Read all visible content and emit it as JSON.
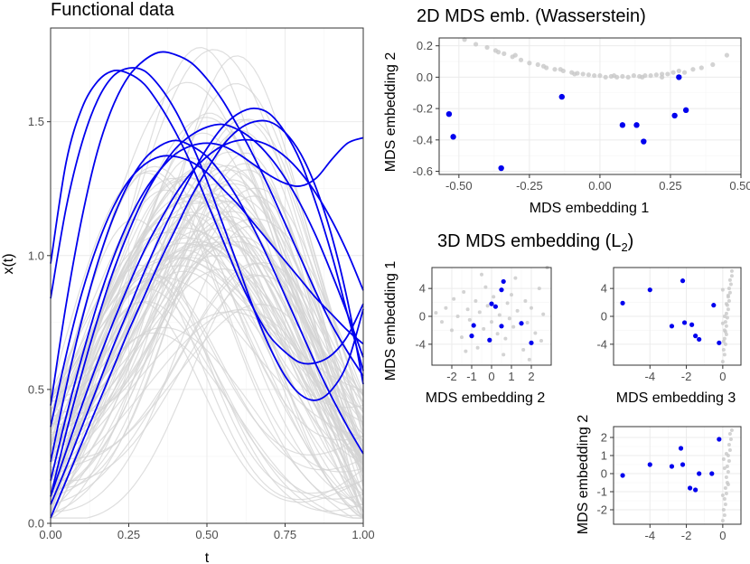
{
  "colors": {
    "highlight": "#0000ee",
    "background_curves": "#d3d3d3",
    "background_points": "#c8c8c8"
  },
  "chart_data": [
    {
      "type": "line",
      "title": "Functional data",
      "xlabel": "t",
      "ylabel": "x(t)",
      "xlim": [
        0,
        1
      ],
      "ylim": [
        0,
        1.85
      ],
      "xticks": [
        "0.00",
        "0.25",
        "0.50",
        "0.75",
        "1.00"
      ],
      "yticks": [
        "0.0",
        "0.5",
        "1.0",
        "1.5"
      ],
      "grid": true,
      "x_samples": [
        0,
        0.05,
        0.1,
        0.15,
        0.2,
        0.25,
        0.3,
        0.35,
        0.4,
        0.45,
        0.5,
        0.55,
        0.6,
        0.65,
        0.7,
        0.75,
        0.8,
        0.85,
        0.9,
        0.95,
        1
      ],
      "series": [
        {
          "group": "highlight",
          "values": [
            0.97,
            1.35,
            1.55,
            1.65,
            1.69,
            1.68,
            1.64,
            1.56,
            1.46,
            1.34,
            1.2,
            1.06,
            0.92,
            0.8,
            0.7,
            0.64,
            0.6,
            0.6,
            0.63,
            0.7,
            0.82
          ]
        },
        {
          "group": "highlight",
          "values": [
            0.84,
            1.18,
            1.42,
            1.58,
            1.67,
            1.7,
            1.69,
            1.63,
            1.54,
            1.42,
            1.28,
            1.12,
            0.96,
            0.8,
            0.66,
            0.55,
            0.48,
            0.46,
            0.5,
            0.6,
            0.8
          ]
        },
        {
          "group": "highlight",
          "values": [
            0.44,
            0.82,
            1.14,
            1.39,
            1.56,
            1.67,
            1.73,
            1.76,
            1.75,
            1.72,
            1.66,
            1.58,
            1.48,
            1.37,
            1.25,
            1.12,
            0.99,
            0.86,
            0.74,
            0.64,
            0.55
          ]
        },
        {
          "group": "highlight",
          "values": [
            0.23,
            0.51,
            0.76,
            0.97,
            1.14,
            1.27,
            1.36,
            1.41,
            1.43,
            1.41,
            1.37,
            1.3,
            1.21,
            1.1,
            0.98,
            0.85,
            0.72,
            0.59,
            0.47,
            0.36,
            0.26
          ]
        },
        {
          "group": "highlight",
          "values": [
            0.36,
            0.63,
            0.86,
            1.04,
            1.18,
            1.28,
            1.34,
            1.37,
            1.37,
            1.35,
            1.31,
            1.25,
            1.19,
            1.12,
            1.05,
            0.98,
            0.91,
            0.84,
            0.78,
            0.72,
            0.67
          ]
        },
        {
          "group": "highlight",
          "values": [
            0.1,
            0.34,
            0.56,
            0.76,
            0.94,
            1.09,
            1.22,
            1.32,
            1.4,
            1.45,
            1.48,
            1.49,
            1.47,
            1.43,
            1.37,
            1.29,
            1.19,
            1.07,
            0.93,
            0.78,
            0.62
          ]
        },
        {
          "group": "highlight",
          "values": [
            0.16,
            0.4,
            0.62,
            0.82,
            0.99,
            1.13,
            1.24,
            1.32,
            1.38,
            1.41,
            1.42,
            1.41,
            1.38,
            1.34,
            1.3,
            1.27,
            1.26,
            1.29,
            1.36,
            1.42,
            1.44
          ]
        },
        {
          "group": "highlight",
          "values": [
            0.1,
            0.27,
            0.44,
            0.6,
            0.75,
            0.89,
            1.02,
            1.13,
            1.23,
            1.31,
            1.37,
            1.41,
            1.43,
            1.43,
            1.41,
            1.37,
            1.31,
            1.23,
            1.13,
            1.01,
            0.87
          ]
        },
        {
          "group": "highlight",
          "values": [
            0.07,
            0.21,
            0.36,
            0.51,
            0.66,
            0.8,
            0.94,
            1.07,
            1.19,
            1.3,
            1.4,
            1.48,
            1.53,
            1.55,
            1.53,
            1.46,
            1.35,
            1.19,
            1.0,
            0.78,
            0.57
          ]
        },
        {
          "group": "highlight",
          "values": [
            0.02,
            0.16,
            0.3,
            0.44,
            0.58,
            0.72,
            0.85,
            0.98,
            1.1,
            1.22,
            1.32,
            1.41,
            1.47,
            1.5,
            1.5,
            1.46,
            1.38,
            1.25,
            1.07,
            0.83,
            0.52
          ]
        }
      ]
    },
    {
      "type": "scatter",
      "title": "2D MDS emb. (Wasserstein)",
      "xlabel": "MDS embedding 1",
      "ylabel": "MDS embedding 2",
      "xlim": [
        -0.57,
        0.5
      ],
      "ylim": [
        -0.62,
        0.25
      ],
      "xticks": [
        "-0.50",
        "-0.25",
        "0.00",
        "0.25",
        "0.50"
      ],
      "yticks": [
        "0.2",
        "0.0",
        "-0.2",
        "-0.4",
        "-0.6"
      ],
      "grid": true,
      "highlight_points": [
        [
          -0.535,
          -0.235
        ],
        [
          -0.52,
          -0.38
        ],
        [
          -0.35,
          -0.58
        ],
        [
          -0.135,
          -0.125
        ],
        [
          0.08,
          -0.305
        ],
        [
          0.13,
          -0.305
        ],
        [
          0.155,
          -0.41
        ],
        [
          0.265,
          -0.245
        ],
        [
          0.28,
          0.0
        ],
        [
          0.305,
          -0.21
        ]
      ],
      "background_points": [
        [
          -0.48,
          0.24
        ],
        [
          -0.44,
          0.21
        ],
        [
          -0.4,
          0.19
        ],
        [
          -0.37,
          0.17
        ],
        [
          -0.34,
          0.15
        ],
        [
          -0.31,
          0.13
        ],
        [
          -0.28,
          0.11
        ],
        [
          -0.25,
          0.09
        ],
        [
          -0.22,
          0.08
        ],
        [
          -0.19,
          0.06
        ],
        [
          -0.16,
          0.05
        ],
        [
          -0.13,
          0.04
        ],
        [
          -0.1,
          0.03
        ],
        [
          -0.08,
          0.025
        ],
        [
          -0.06,
          0.02
        ],
        [
          -0.04,
          0.015
        ],
        [
          -0.02,
          0.01
        ],
        [
          0.0,
          0.01
        ],
        [
          0.02,
          0.0
        ],
        [
          0.04,
          0.005
        ],
        [
          0.06,
          0.0
        ],
        [
          0.08,
          0.005
        ],
        [
          0.1,
          0.0
        ],
        [
          0.12,
          0.01
        ],
        [
          0.14,
          0.005
        ],
        [
          0.16,
          0.01
        ],
        [
          0.18,
          0.01
        ],
        [
          0.2,
          0.015
        ],
        [
          0.22,
          0.02
        ],
        [
          0.24,
          0.02
        ],
        [
          0.26,
          0.03
        ],
        [
          0.3,
          0.03
        ],
        [
          0.33,
          0.05
        ],
        [
          0.36,
          0.06
        ],
        [
          0.4,
          0.08
        ],
        [
          0.45,
          0.14
        ],
        [
          -0.3,
          0.14
        ],
        [
          -0.2,
          0.07
        ],
        [
          -0.09,
          0.02
        ],
        [
          0.05,
          0.01
        ],
        [
          0.15,
          0.0
        ],
        [
          0.22,
          0.0
        ],
        [
          0.28,
          0.04
        ],
        [
          -0.36,
          0.16
        ],
        [
          -0.14,
          0.05
        ]
      ]
    },
    {
      "type": "scatter",
      "title": "3D MDS embedding (L",
      "title_subscript": "2",
      "title_suffix": ")",
      "panels": [
        {
          "xlabel": "MDS embedding 2",
          "ylabel": "MDS embedding 1",
          "xlim": [
            -3,
            3
          ],
          "ylim": [
            -7,
            7
          ],
          "xticks": [
            "-2",
            "-1",
            "0",
            "1",
            "2"
          ],
          "yticks": [
            "4",
            "0",
            "-4"
          ],
          "highlight_points": [
            [
              -1.0,
              -2.8
            ],
            [
              -0.9,
              -1.3
            ],
            [
              0.0,
              1.8
            ],
            [
              0.2,
              1.4
            ],
            [
              -0.1,
              -3.4
            ],
            [
              0.5,
              3.8
            ],
            [
              0.6,
              5.0
            ],
            [
              1.5,
              -1.0
            ],
            [
              2.0,
              -3.8
            ],
            [
              0.5,
              -1.4
            ]
          ],
          "background_points": [
            [
              -2.8,
              0.5
            ],
            [
              -2.5,
              -0.8
            ],
            [
              -2.3,
              1.2
            ],
            [
              -2.0,
              -2.0
            ],
            [
              -1.9,
              2.5
            ],
            [
              -1.7,
              0.0
            ],
            [
              -1.5,
              -3.0
            ],
            [
              -1.4,
              3.5
            ],
            [
              -1.2,
              1.0
            ],
            [
              -1.1,
              -0.5
            ],
            [
              -0.8,
              2.2
            ],
            [
              -0.7,
              -4.5
            ],
            [
              -0.6,
              0.6
            ],
            [
              -0.4,
              -1.8
            ],
            [
              -0.3,
              4.2
            ],
            [
              -0.2,
              1.5
            ],
            [
              0.0,
              -0.8
            ],
            [
              0.1,
              2.8
            ],
            [
              0.3,
              -2.5
            ],
            [
              0.4,
              0.2
            ],
            [
              0.7,
              -3.2
            ],
            [
              0.8,
              1.9
            ],
            [
              0.9,
              -0.3
            ],
            [
              1.0,
              3.1
            ],
            [
              1.1,
              -1.5
            ],
            [
              1.2,
              5.5
            ],
            [
              1.3,
              0.8
            ],
            [
              1.6,
              -4.8
            ],
            [
              1.7,
              2.2
            ],
            [
              1.8,
              -0.9
            ],
            [
              2.0,
              1.2
            ],
            [
              2.2,
              -2.4
            ],
            [
              2.4,
              4.0
            ],
            [
              2.6,
              0.3
            ],
            [
              2.8,
              7.0
            ],
            [
              -1.3,
              -5.0
            ],
            [
              0.6,
              -5.5
            ],
            [
              1.9,
              -6.2
            ],
            [
              -0.5,
              6.0
            ],
            [
              2.5,
              -3.5
            ]
          ]
        },
        {
          "xlabel": "MDS embedding 3",
          "ylabel": "",
          "xlim": [
            -6,
            1
          ],
          "ylim": [
            -7,
            7
          ],
          "xticks": [
            "-4",
            "-2",
            "0"
          ],
          "yticks": [
            "4",
            "0",
            "-4"
          ],
          "highlight_points": [
            [
              -5.5,
              1.9
            ],
            [
              -4.0,
              3.8
            ],
            [
              -2.8,
              -1.4
            ],
            [
              -2.2,
              5.1
            ],
            [
              -2.1,
              -0.9
            ],
            [
              -1.7,
              -1.2
            ],
            [
              -1.5,
              -2.8
            ],
            [
              -1.3,
              -3.3
            ],
            [
              -0.5,
              1.6
            ],
            [
              -0.2,
              -3.8
            ]
          ],
          "background_points": [
            [
              0.0,
              -6.5
            ],
            [
              0.1,
              -5.5
            ],
            [
              0.05,
              -4.8
            ],
            [
              0.15,
              -4.0
            ],
            [
              0.1,
              -3.2
            ],
            [
              0.2,
              -2.6
            ],
            [
              0.1,
              -2.0
            ],
            [
              0.2,
              -1.4
            ],
            [
              0.15,
              -0.8
            ],
            [
              0.25,
              -0.2
            ],
            [
              0.2,
              0.4
            ],
            [
              0.3,
              1.0
            ],
            [
              0.25,
              1.6
            ],
            [
              0.35,
              2.2
            ],
            [
              0.3,
              2.8
            ],
            [
              0.4,
              3.4
            ],
            [
              0.35,
              4.0
            ],
            [
              0.45,
              4.6
            ],
            [
              0.4,
              5.2
            ],
            [
              0.5,
              5.8
            ],
            [
              0.5,
              6.5
            ],
            [
              0.0,
              -1.0
            ],
            [
              0.1,
              0.0
            ],
            [
              0.2,
              1.8
            ],
            [
              0.3,
              3.0
            ],
            [
              0.0,
              3.8
            ],
            [
              0.05,
              -3.6
            ],
            [
              0.15,
              -2.2
            ]
          ]
        },
        {
          "xlabel": "",
          "ylabel": "MDS embedding 2",
          "xlim": [
            -6,
            1
          ],
          "ylim": [
            -2.8,
            2.6
          ],
          "xticks": [
            "-4",
            "-2",
            "0"
          ],
          "yticks": [
            "2",
            "1",
            "0",
            "-1",
            "-2"
          ],
          "highlight_points": [
            [
              -5.5,
              -0.1
            ],
            [
              -4.0,
              0.5
            ],
            [
              -2.8,
              0.4
            ],
            [
              -2.3,
              1.4
            ],
            [
              -2.2,
              0.5
            ],
            [
              -1.8,
              -0.8
            ],
            [
              -1.5,
              -0.9
            ],
            [
              -1.3,
              0.0
            ],
            [
              -0.6,
              0.0
            ],
            [
              -0.2,
              1.9
            ]
          ],
          "background_points": [
            [
              0.0,
              -2.6
            ],
            [
              0.1,
              -2.3
            ],
            [
              0.05,
              -2.0
            ],
            [
              0.15,
              -1.7
            ],
            [
              0.1,
              -1.4
            ],
            [
              0.2,
              -1.1
            ],
            [
              0.15,
              -0.8
            ],
            [
              0.25,
              -0.5
            ],
            [
              0.2,
              -0.2
            ],
            [
              0.3,
              0.1
            ],
            [
              0.25,
              0.4
            ],
            [
              0.35,
              0.7
            ],
            [
              0.3,
              1.0
            ],
            [
              0.4,
              1.3
            ],
            [
              0.35,
              1.6
            ],
            [
              0.45,
              1.9
            ],
            [
              0.4,
              2.2
            ],
            [
              0.5,
              2.4
            ],
            [
              0.0,
              -1.2
            ],
            [
              0.1,
              0.3
            ],
            [
              0.2,
              1.1
            ],
            [
              0.3,
              -0.6
            ],
            [
              0.05,
              0.8
            ]
          ]
        }
      ]
    }
  ]
}
